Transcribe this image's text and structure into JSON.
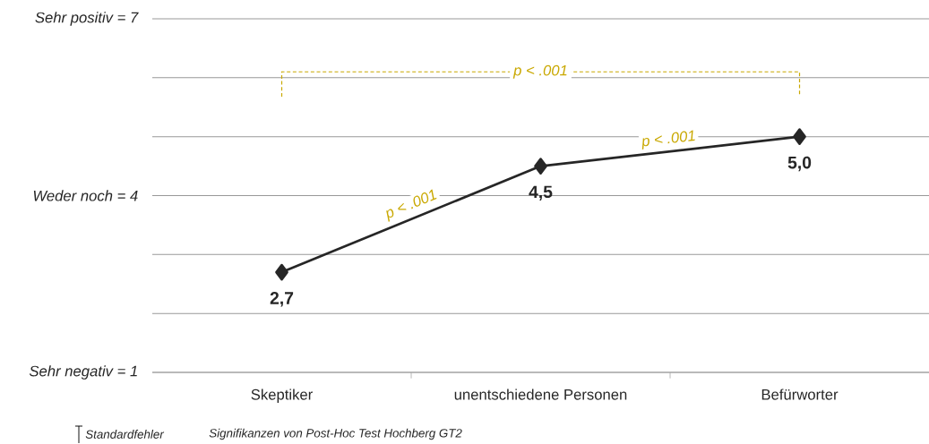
{
  "chart_data": {
    "type": "line",
    "categories": [
      "Skeptiker",
      "unentschiedene Personen",
      "Befürworter"
    ],
    "series": [
      {
        "color": "#262626",
        "values": [
          2.7,
          4.5,
          5.0
        ],
        "value_labels": [
          "2,7",
          "4,5",
          "5,0"
        ]
      }
    ],
    "ylim": [
      1,
      7
    ],
    "yticks": [
      {
        "value": 1,
        "label": "Sehr negativ = 1"
      },
      {
        "value": 2,
        "label": null
      },
      {
        "value": 3,
        "label": null
      },
      {
        "value": 4,
        "label": "Weder noch = 4"
      },
      {
        "value": 5,
        "label": null
      },
      {
        "value": 6,
        "label": null
      },
      {
        "value": 7,
        "label": "Sehr positiv = 7"
      }
    ],
    "grid": "y",
    "marker": "diamond",
    "line_style": "solid",
    "annotations": [
      "p < .001",
      "p < .001",
      "p < .001",
      "Standardfehler",
      "Signifikanzen von Post-Hoc Test Hochberg GT2"
    ]
  }
}
